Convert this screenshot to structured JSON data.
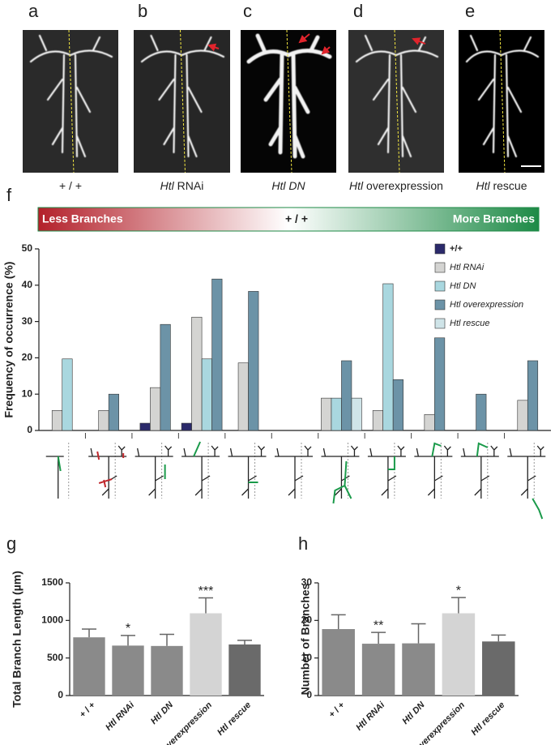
{
  "panels": [
    {
      "letter": "a",
      "caption": [
        {
          "text": "+ / +",
          "italic": false
        }
      ]
    },
    {
      "letter": "b",
      "caption": [
        {
          "text": "Htl",
          "italic": true
        },
        {
          "text": " RNAi",
          "italic": false
        }
      ]
    },
    {
      "letter": "c",
      "caption": [
        {
          "text": "Htl DN",
          "italic": true
        }
      ]
    },
    {
      "letter": "d",
      "caption": [
        {
          "text": "Htl",
          "italic": true
        },
        {
          "text": " overexpression",
          "italic": false
        }
      ]
    },
    {
      "letter": "e",
      "caption": [
        {
          "text": "Htl",
          "italic": true
        },
        {
          "text": " rescue",
          "italic": false
        }
      ]
    }
  ],
  "gradient": {
    "left": "Less Branches",
    "center": "+ / +",
    "right": "More Branches"
  },
  "chart_data": [
    {
      "type": "bar",
      "panel": "f",
      "y_label": "Frequency of occurrence (%)",
      "categories": [
        null,
        null,
        null,
        null,
        null,
        null,
        null,
        null,
        null,
        null,
        null
      ],
      "series": [
        {
          "name": "+/+",
          "color": "#2b2a6b",
          "values": [
            null,
            null,
            2,
            2,
            null,
            null,
            null,
            null,
            null,
            null,
            null
          ]
        },
        {
          "name": "Htl RNAi",
          "color": "#d4d4d2",
          "values": [
            5.5,
            5.5,
            11.8,
            31.2,
            18.6,
            null,
            8.9,
            5.5,
            4.4,
            null,
            8.3
          ]
        },
        {
          "name": "Htl DN",
          "color": "#a9d7df",
          "values": [
            19.7,
            null,
            null,
            19.7,
            null,
            null,
            8.9,
            40.4,
            null,
            null,
            null
          ]
        },
        {
          "name": "Htl overexpression",
          "color": "#6c93a7",
          "values": [
            null,
            10,
            29.2,
            41.7,
            38.3,
            null,
            19.2,
            14,
            25.5,
            10,
            19.2
          ]
        },
        {
          "name": "Htl rescue",
          "color": "#cfe4e8",
          "values": [
            null,
            null,
            null,
            null,
            null,
            null,
            8.9,
            null,
            null,
            null,
            null
          ]
        }
      ],
      "ylim": [
        0,
        50
      ],
      "yticks": [
        0,
        10,
        20,
        30,
        40,
        50
      ],
      "legend": "top-right"
    },
    {
      "type": "bar",
      "panel": "g",
      "y_label": "Total Branch Length (µm)",
      "categories": [
        "+ / +",
        "Htl RNAi",
        "Htl DN",
        "Htl overexpression",
        "Htl rescue"
      ],
      "values": [
        775,
        665,
        660,
        1095,
        680
      ],
      "errors": [
        110,
        135,
        155,
        205,
        55
      ],
      "colors": [
        "#8a8a8a",
        "#8a8a8a",
        "#8a8a8a",
        "#d4d4d4",
        "#6a6a6a"
      ],
      "annotations": [
        null,
        "*",
        null,
        "***",
        null
      ],
      "ylim": [
        0,
        1500
      ],
      "yticks": [
        0,
        500,
        1000,
        1500
      ]
    },
    {
      "type": "bar",
      "panel": "h",
      "y_label": "Number of Branches",
      "categories": [
        "+ / +",
        "Htl RNAi",
        "Htl DN",
        "Htl overexpression",
        "Htl rescue"
      ],
      "values": [
        17.7,
        13.8,
        13.9,
        21.9,
        14.4
      ],
      "errors": [
        3.8,
        3.0,
        5.2,
        4.2,
        1.7
      ],
      "colors": [
        "#8a8a8a",
        "#8a8a8a",
        "#8a8a8a",
        "#d4d4d4",
        "#6a6a6a"
      ],
      "annotations": [
        null,
        "**",
        null,
        "*",
        null
      ],
      "ylim": [
        0,
        30
      ],
      "yticks": [
        0,
        10,
        20,
        30
      ]
    }
  ]
}
